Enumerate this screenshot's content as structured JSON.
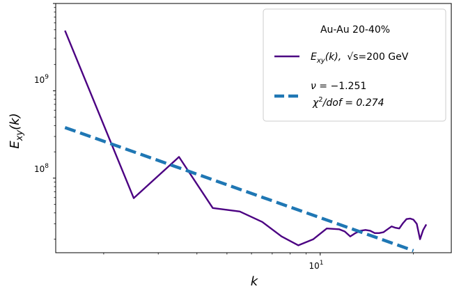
{
  "chart_data": {
    "type": "line",
    "xscale": "log",
    "yscale": "log",
    "xlim": [
      1.4,
      26.5
    ],
    "ylim": [
      14000000,
      10000000000
    ],
    "xlabel": "k",
    "ylabel": "E",
    "ylabel_sub": "xy",
    "ylabel_arg": "(k)",
    "x_ticks": [
      {
        "value": 10,
        "base": "10",
        "exp": "1"
      }
    ],
    "y_ticks": [
      {
        "value": 100000000,
        "base": "10",
        "exp": "8"
      },
      {
        "value": 1000000000,
        "base": "10",
        "exp": "9"
      }
    ],
    "grid": false,
    "legend": {
      "placement": "top-right",
      "title": "Au-Au  20-40%",
      "entries": [
        {
          "color": "#4b0082",
          "style": "solid",
          "name_main": "E",
          "name_sub": "xy",
          "name_arg": "(k),",
          "name_sqrt": "√s",
          "name_tail": "=200 GeV"
        },
        {
          "color": "#1f77b4",
          "style": "dashed",
          "line1_pre": "ν",
          "line1_post": " = −1.251",
          "line2_chi": "χ",
          "line2_sup": "2",
          "line2_post": "/dof = 0.274"
        }
      ]
    },
    "series": [
      {
        "color": "#4b0082",
        "style": "solid",
        "x": [
          1.5,
          2.5,
          3.5,
          4.5,
          5.5,
          6.5,
          7.5,
          8.5,
          9.5,
          10.5,
          11.5,
          12.0,
          12.5,
          13.0,
          13.5,
          14.0,
          14.5,
          15.0,
          15.5,
          16.0,
          16.5,
          17.0,
          17.5,
          18.0,
          18.5,
          19.0,
          19.5,
          20.0,
          20.5,
          21.0,
          21.5,
          22.0
        ],
        "y": [
          4900000000,
          59000000,
          175000000,
          45500000,
          41500000,
          31500000,
          21500000,
          17000000,
          20000000,
          26500000,
          26000000,
          24500000,
          21500000,
          23500000,
          25000000,
          25500000,
          25000000,
          23500000,
          23500000,
          24000000,
          26000000,
          28000000,
          27000000,
          26500000,
          30500000,
          34000000,
          34500000,
          33500000,
          30000000,
          20000000,
          25500000,
          29500000
        ]
      },
      {
        "color": "#1f77b4",
        "style": "dashed",
        "x": [
          1.5,
          20.0
        ],
        "y": [
          380000000,
          14800000
        ]
      }
    ]
  }
}
